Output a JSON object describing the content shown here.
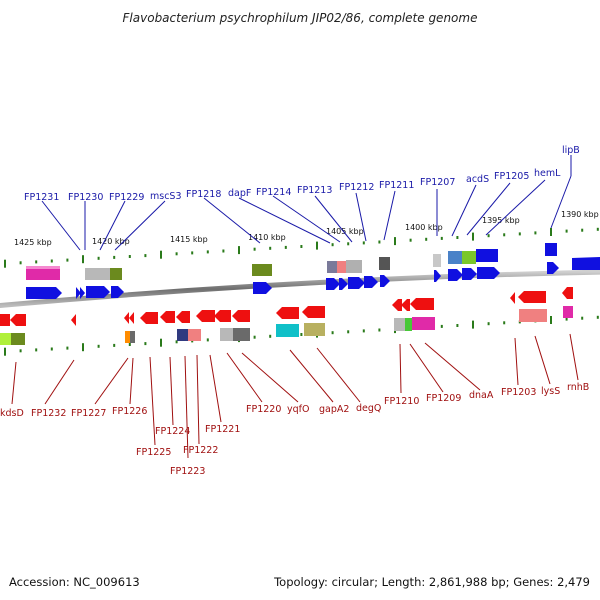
{
  "header": {
    "title": "Flavobacterium psychrophilum JIP02/86, complete genome"
  },
  "footer": {
    "accession": "Accession: NC_009613",
    "summary": "Topology: circular; Length: 2,861,988 bp; Genes: 2,479"
  },
  "scale_labels": [
    "1425 kbp",
    "1420 kbp",
    "1415 kbp",
    "1410 kbp",
    "1405 kbp",
    "1400 kbp",
    "1395 kbp",
    "1390 kbp"
  ],
  "genes_top": [
    "FP1231",
    "FP1230",
    "FP1229",
    "mscS3",
    "FP1218",
    "dapF",
    "FP1214",
    "FP1213",
    "FP1212",
    "FP1211",
    "FP1207",
    "acdS",
    "FP1205",
    "hemL",
    "lipB"
  ],
  "genes_bottom": [
    "kdsD",
    "FP1232",
    "FP1227",
    "FP1226",
    "FP1225",
    "FP1224",
    "FP1223",
    "FP1222",
    "FP1221",
    "FP1220",
    "yqfO",
    "gapA2",
    "degQ",
    "FP1210",
    "FP1209",
    "dnaA",
    "FP1203",
    "lysS",
    "rnhB"
  ],
  "colors": {
    "forward_strand": "#1010e0",
    "reverse_strand": "#e01010",
    "backbone": "#8a8a8a",
    "tick": "#2a7a1a",
    "top_label": "#1a1aa8",
    "bottom_label": "#a01010"
  }
}
